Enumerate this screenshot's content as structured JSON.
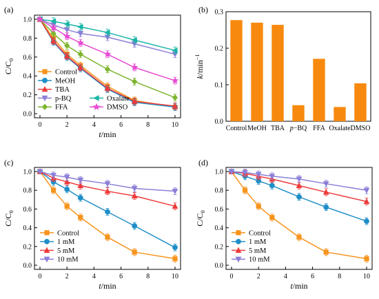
{
  "colors": {
    "orange": "#F7941D",
    "blue": "#1F8FC8",
    "red": "#EE3B3B",
    "purple": "#8B7FD8",
    "teal": "#19B5A5",
    "green": "#7DB52E",
    "magenta": "#E84BD3",
    "bar": "#F78A0E"
  },
  "chart_data": [
    {
      "tag": "(a)",
      "type": "line",
      "xlabel": "t/min",
      "ylabel": "C/C0",
      "xlim": [
        0,
        10
      ],
      "ylim": [
        0,
        1.0
      ],
      "xticks": [
        "0",
        "2",
        "4",
        "6",
        "8",
        "10"
      ],
      "yticks": [
        "0.0",
        "0.2",
        "0.4",
        "0.6",
        "0.8",
        "1.0"
      ],
      "x": [
        0,
        1,
        2,
        3,
        5,
        7,
        10
      ],
      "legend": "bottom-left",
      "series": [
        {
          "name": "Control",
          "marker": "square",
          "color": "orange",
          "values": [
            1.0,
            0.8,
            0.63,
            0.51,
            0.29,
            0.14,
            0.07
          ]
        },
        {
          "name": "MeOH",
          "marker": "circle",
          "color": "blue",
          "values": [
            1.0,
            0.76,
            0.6,
            0.48,
            0.26,
            0.12,
            0.07
          ]
        },
        {
          "name": "TBA",
          "marker": "triangle",
          "color": "red",
          "values": [
            1.0,
            0.77,
            0.61,
            0.49,
            0.27,
            0.13,
            0.08
          ]
        },
        {
          "name": "p-BQ",
          "marker": "triangle-down",
          "color": "purple",
          "values": [
            1.0,
            0.94,
            0.89,
            0.85,
            0.81,
            0.74,
            0.63
          ]
        },
        {
          "name": "Oxalate",
          "marker": "triangle-left",
          "color": "teal",
          "values": [
            1.0,
            0.98,
            0.95,
            0.92,
            0.86,
            0.78,
            0.67
          ]
        },
        {
          "name": "FFA",
          "marker": "diamond",
          "color": "green",
          "values": [
            1.0,
            0.85,
            0.72,
            0.63,
            0.47,
            0.34,
            0.17
          ]
        },
        {
          "name": "DMSO",
          "marker": "star",
          "color": "magenta",
          "values": [
            1.0,
            0.91,
            0.82,
            0.75,
            0.63,
            0.49,
            0.35
          ]
        }
      ]
    },
    {
      "tag": "(b)",
      "type": "bar",
      "xlabel": "",
      "ylabel": "k/min-1",
      "ylim": [
        0,
        0.3
      ],
      "yticks": [
        "0.0",
        "0.1",
        "0.2",
        "0.3"
      ],
      "categories": [
        "Control",
        "MeOH",
        "TBA",
        "p-BQ",
        "FFA",
        "Oxalate",
        "DMSO"
      ],
      "values": [
        0.277,
        0.27,
        0.264,
        0.044,
        0.171,
        0.039,
        0.104
      ]
    },
    {
      "tag": "(c)",
      "type": "line",
      "xlabel": "t/min",
      "ylabel": "C/C0",
      "xlim": [
        0,
        10
      ],
      "ylim": [
        0,
        1.0
      ],
      "xticks": [
        "0",
        "2",
        "4",
        "6",
        "8",
        "10"
      ],
      "yticks": [
        "0.0",
        "0.2",
        "0.4",
        "0.6",
        "0.8",
        "1.0"
      ],
      "x": [
        0,
        1,
        2,
        3,
        5,
        7,
        10
      ],
      "legend": "bottom-left",
      "series": [
        {
          "name": "Control",
          "marker": "square",
          "color": "orange",
          "values": [
            1.0,
            0.8,
            0.63,
            0.51,
            0.3,
            0.14,
            0.07
          ]
        },
        {
          "name": "1 mM",
          "marker": "circle",
          "color": "blue",
          "values": [
            1.0,
            0.89,
            0.81,
            0.72,
            0.57,
            0.42,
            0.19
          ]
        },
        {
          "name": "5 mM",
          "marker": "triangle",
          "color": "red",
          "values": [
            1.0,
            0.93,
            0.89,
            0.85,
            0.79,
            0.74,
            0.63
          ]
        },
        {
          "name": "10 mM",
          "marker": "triangle-down",
          "color": "purple",
          "values": [
            1.0,
            0.96,
            0.94,
            0.91,
            0.87,
            0.82,
            0.79
          ]
        }
      ]
    },
    {
      "tag": "(d)",
      "type": "line",
      "xlabel": "t/min",
      "ylabel": "C/C0",
      "xlim": [
        0,
        10
      ],
      "ylim": [
        0,
        1.0
      ],
      "xticks": [
        "0",
        "2",
        "4",
        "6",
        "8",
        "10"
      ],
      "yticks": [
        "0.0",
        "0.2",
        "0.4",
        "0.6",
        "0.8",
        "1.0"
      ],
      "x": [
        0,
        1,
        2,
        3,
        5,
        7,
        10
      ],
      "legend": "bottom-left",
      "series": [
        {
          "name": "Control",
          "marker": "square",
          "color": "orange",
          "values": [
            1.0,
            0.8,
            0.63,
            0.51,
            0.3,
            0.14,
            0.07
          ]
        },
        {
          "name": "1 mM",
          "marker": "circle",
          "color": "blue",
          "values": [
            1.0,
            0.95,
            0.9,
            0.85,
            0.73,
            0.62,
            0.47
          ]
        },
        {
          "name": "5 mM",
          "marker": "triangle",
          "color": "red",
          "values": [
            1.0,
            0.98,
            0.95,
            0.92,
            0.85,
            0.78,
            0.68
          ]
        },
        {
          "name": "10 mM",
          "marker": "triangle-down",
          "color": "purple",
          "values": [
            1.0,
            0.99,
            0.97,
            0.95,
            0.92,
            0.87,
            0.8
          ]
        }
      ]
    }
  ]
}
